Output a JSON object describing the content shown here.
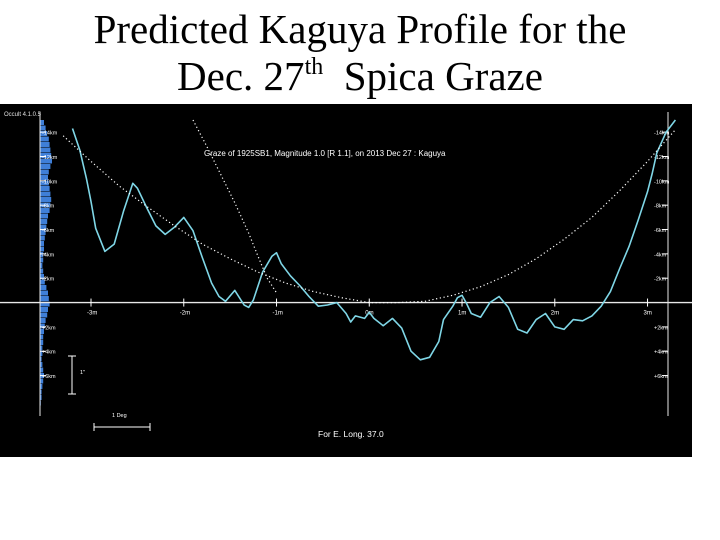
{
  "slide": {
    "title_line1": "Predicted Kaguya Profile for the",
    "title_line2_pre": "Dec. 27",
    "title_sup": "th",
    "title_line2_post": "  Spica Graze"
  },
  "colors": {
    "background": "#000000",
    "profile": "#7fd6e6",
    "limb_bars": "#3f7fd8",
    "text": "#ffffff",
    "axis": "#e8e8e8"
  },
  "chart_data": {
    "type": "line",
    "app_label": "Occult 4.1.0.5",
    "title": "Graze of  1925SB1,  Magnitude 1.0 [R 1.1],  on 2013 Dec 27  :  Kaguya",
    "footer": "For E. Long. 37.0",
    "scale_bar_label": "1 Deg",
    "vertical_scale_label": "1\"",
    "x_unit": "km",
    "y_unit": "km",
    "xlim": [
      -3.55,
      3.35
    ],
    "ylim": [
      -8.5,
      15
    ],
    "x_ticks": [
      {
        "value": -3,
        "label": "-3m"
      },
      {
        "value": -2,
        "label": "-2m"
      },
      {
        "value": -1,
        "label": "-1m"
      },
      {
        "value": 0,
        "label": "0m"
      },
      {
        "value": 1,
        "label": "1m"
      },
      {
        "value": 2,
        "label": "2m"
      },
      {
        "value": 3,
        "label": "3m"
      }
    ],
    "y_ticks_left": [
      {
        "value": 14,
        "label": "-14km"
      },
      {
        "value": 12,
        "label": "-12km"
      },
      {
        "value": 10,
        "label": "-10km"
      },
      {
        "value": 8,
        "label": "-8km"
      },
      {
        "value": 6,
        "label": "-6km"
      },
      {
        "value": 4,
        "label": "-4km"
      },
      {
        "value": 2,
        "label": "-2km"
      },
      {
        "value": -2,
        "label": "+2km"
      },
      {
        "value": -4,
        "label": "+4km"
      },
      {
        "value": -6,
        "label": "+6km"
      }
    ],
    "y_ticks_right": [
      {
        "value": 14,
        "label": "-14km"
      },
      {
        "value": 12,
        "label": "-12km"
      },
      {
        "value": 10,
        "label": "-10km"
      },
      {
        "value": 8,
        "label": "-8km"
      },
      {
        "value": 6,
        "label": "-6km"
      },
      {
        "value": 4,
        "label": "-4km"
      },
      {
        "value": 2,
        "label": "-2km"
      },
      {
        "value": -2,
        "label": "+2km"
      },
      {
        "value": -4,
        "label": "+4km"
      },
      {
        "value": -6,
        "label": "+6km"
      }
    ],
    "grid": false,
    "series": [
      {
        "type": "profile",
        "color": "#7fd6e6",
        "x": [
          -3.2,
          -3.12,
          -3.05,
          -3.0,
          -2.95,
          -2.85,
          -2.75,
          -2.65,
          -2.55,
          -2.5,
          -2.4,
          -2.3,
          -2.2,
          -2.1,
          -2.0,
          -1.9,
          -1.8,
          -1.7,
          -1.62,
          -1.55,
          -1.45,
          -1.35,
          -1.3,
          -1.25,
          -1.15,
          -1.05,
          -1.0,
          -0.95,
          -0.85,
          -0.75,
          -0.65,
          -0.55,
          -0.45,
          -0.35,
          -0.25,
          -0.2,
          -0.15,
          -0.05,
          0.0,
          0.05,
          0.15,
          0.25,
          0.35,
          0.45,
          0.55,
          0.65,
          0.75,
          0.8,
          0.9,
          0.95,
          1.0,
          1.05,
          1.1,
          1.2,
          1.3,
          1.4,
          1.5,
          1.6,
          1.7,
          1.8,
          1.9,
          2.0,
          2.1,
          2.2,
          2.3,
          2.4,
          2.5,
          2.6,
          2.7,
          2.8,
          2.9,
          3.0,
          3.05,
          3.1,
          3.2,
          3.3
        ],
        "y": [
          14.3,
          12.5,
          10.2,
          8.3,
          6.1,
          4.2,
          4.8,
          7.5,
          9.8,
          9.4,
          7.8,
          6.3,
          5.6,
          6.2,
          7.0,
          5.9,
          3.7,
          1.6,
          0.5,
          0.1,
          1.0,
          -0.2,
          -0.4,
          0.2,
          2.5,
          3.8,
          4.1,
          3.2,
          2.2,
          1.4,
          0.5,
          -0.3,
          -0.2,
          0.0,
          -0.9,
          -1.6,
          -1.1,
          -1.3,
          -0.8,
          -1.3,
          -1.9,
          -1.3,
          -2.1,
          -4.0,
          -4.7,
          -4.5,
          -3.2,
          -1.4,
          -0.3,
          0.4,
          0.6,
          -0.1,
          -0.9,
          -1.2,
          0.0,
          0.5,
          -0.4,
          -2.2,
          -2.5,
          -1.4,
          -0.9,
          -2.0,
          -2.2,
          -1.4,
          -1.5,
          -1.1,
          -0.3,
          0.9,
          2.8,
          4.6,
          6.8,
          9.1,
          10.6,
          12.3,
          14.0,
          15.0
        ]
      },
      {
        "type": "limb-curve",
        "style": "dotted",
        "color": "#ffffff",
        "x": [
          -3.3,
          -3.0,
          -2.7,
          -2.4,
          -2.1,
          -1.8,
          -1.5,
          -1.2,
          -0.9,
          -0.6,
          -0.3,
          0.0,
          0.3,
          0.6,
          0.9,
          1.2,
          1.5,
          1.8,
          2.1,
          2.4,
          2.7,
          3.0,
          3.3
        ],
        "y": [
          13.7,
          11.6,
          9.6,
          7.9,
          6.3,
          4.8,
          3.6,
          2.5,
          1.6,
          0.9,
          0.4,
          0.0,
          0.0,
          0.1,
          0.6,
          1.3,
          2.3,
          3.6,
          5.2,
          7.0,
          9.2,
          11.6,
          14.2
        ]
      },
      {
        "type": "limb-curve",
        "style": "dotted",
        "color": "#ffffff",
        "x": [
          -1.9,
          -1.75,
          -1.6,
          -1.45,
          -1.3,
          -1.2,
          -1.1,
          -1.0
        ],
        "y": [
          15.0,
          12.8,
          10.5,
          8.2,
          5.7,
          3.8,
          2.0,
          0.8
        ]
      }
    ],
    "limb_bars": {
      "color": "#3f7fd8",
      "values": [
        10,
        14,
        18,
        22,
        24,
        26,
        28,
        30,
        26,
        22,
        20,
        22,
        24,
        26,
        28,
        26,
        24,
        20,
        18,
        16,
        14,
        12,
        10,
        10,
        8,
        8,
        6,
        8,
        10,
        12,
        16,
        20,
        22,
        24,
        20,
        18,
        14,
        12,
        10,
        8,
        8,
        6,
        6,
        4,
        6,
        8,
        10,
        8,
        6,
        4,
        4,
        2
      ]
    }
  }
}
